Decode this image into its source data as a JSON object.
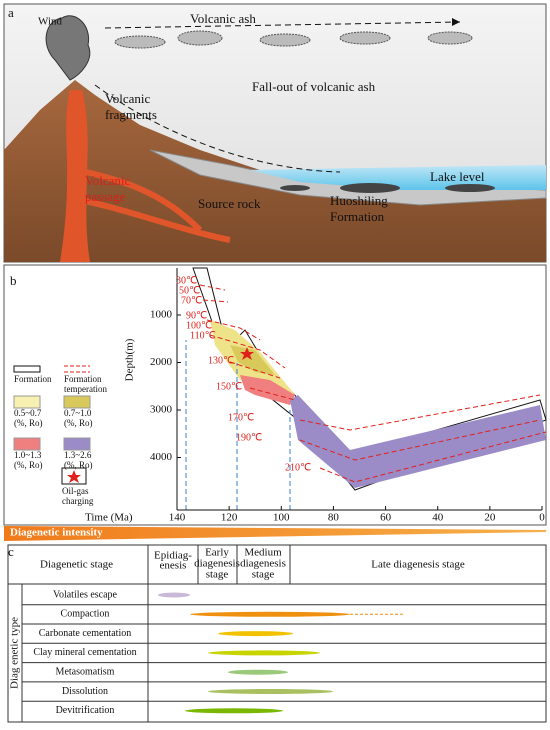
{
  "panel_a": {
    "label": "a",
    "wind": "Wind",
    "volcanic_ash": "Volcanic  ash",
    "fallout": "Fall-out of volcanic ash",
    "volcanic_fragments": [
      "Volcanic",
      "fragments"
    ],
    "volcanic_passage": [
      "Volcanic",
      "passage"
    ],
    "lake_level": "Lake level",
    "source_rock": "Source rock",
    "formation": [
      "Huoshiling",
      "Formation"
    ]
  },
  "panel_b": {
    "label": "b",
    "x_label": "Time (Ma)",
    "y_label": "Depth(m)",
    "xticks": [
      "140",
      "120",
      "100",
      "80",
      "60",
      "40",
      "20",
      "0"
    ],
    "yticks": [
      "1000",
      "2000",
      "3000",
      "4000"
    ],
    "temperatures": [
      "30℃",
      "50℃",
      "70℃",
      "90℃",
      "100℃",
      "110℃",
      "130℃",
      "150℃",
      "170℃",
      "190℃",
      "210℃"
    ],
    "legend": [
      {
        "lines": [
          "Formation"
        ]
      },
      {
        "lines": [
          "Formation",
          "temperation"
        ]
      },
      {
        "lines": [
          "0.5~0.7",
          "(%, Ro)"
        ]
      },
      {
        "lines": [
          "0.7~1.0",
          "(%, Ro)"
        ]
      },
      {
        "lines": [
          "1.0~1.3",
          "(%, Ro)"
        ]
      },
      {
        "lines": [
          "1.3~2.6",
          "(%, Ro)"
        ]
      },
      {
        "lines": [
          "Oil-gas",
          "charging"
        ]
      }
    ]
  },
  "intensity_label": "Diagenetic intensity",
  "panel_c": {
    "label": "c",
    "type_header": "Diag enetic type",
    "stage_header": "Diagenetic stage",
    "stages": [
      [
        "Epidiag-",
        "enesis"
      ],
      [
        "Early",
        "diagenesis",
        "stage"
      ],
      [
        "Medium",
        "diagenesis",
        "stage"
      ],
      [
        "Late diagenesis stage"
      ]
    ],
    "rows": [
      "Volatiles escape",
      "Compaction",
      "Carbonate cementation",
      "Clay mineral cementation",
      "Metasomatism",
      "Dissolution",
      "Devitrification"
    ]
  }
}
